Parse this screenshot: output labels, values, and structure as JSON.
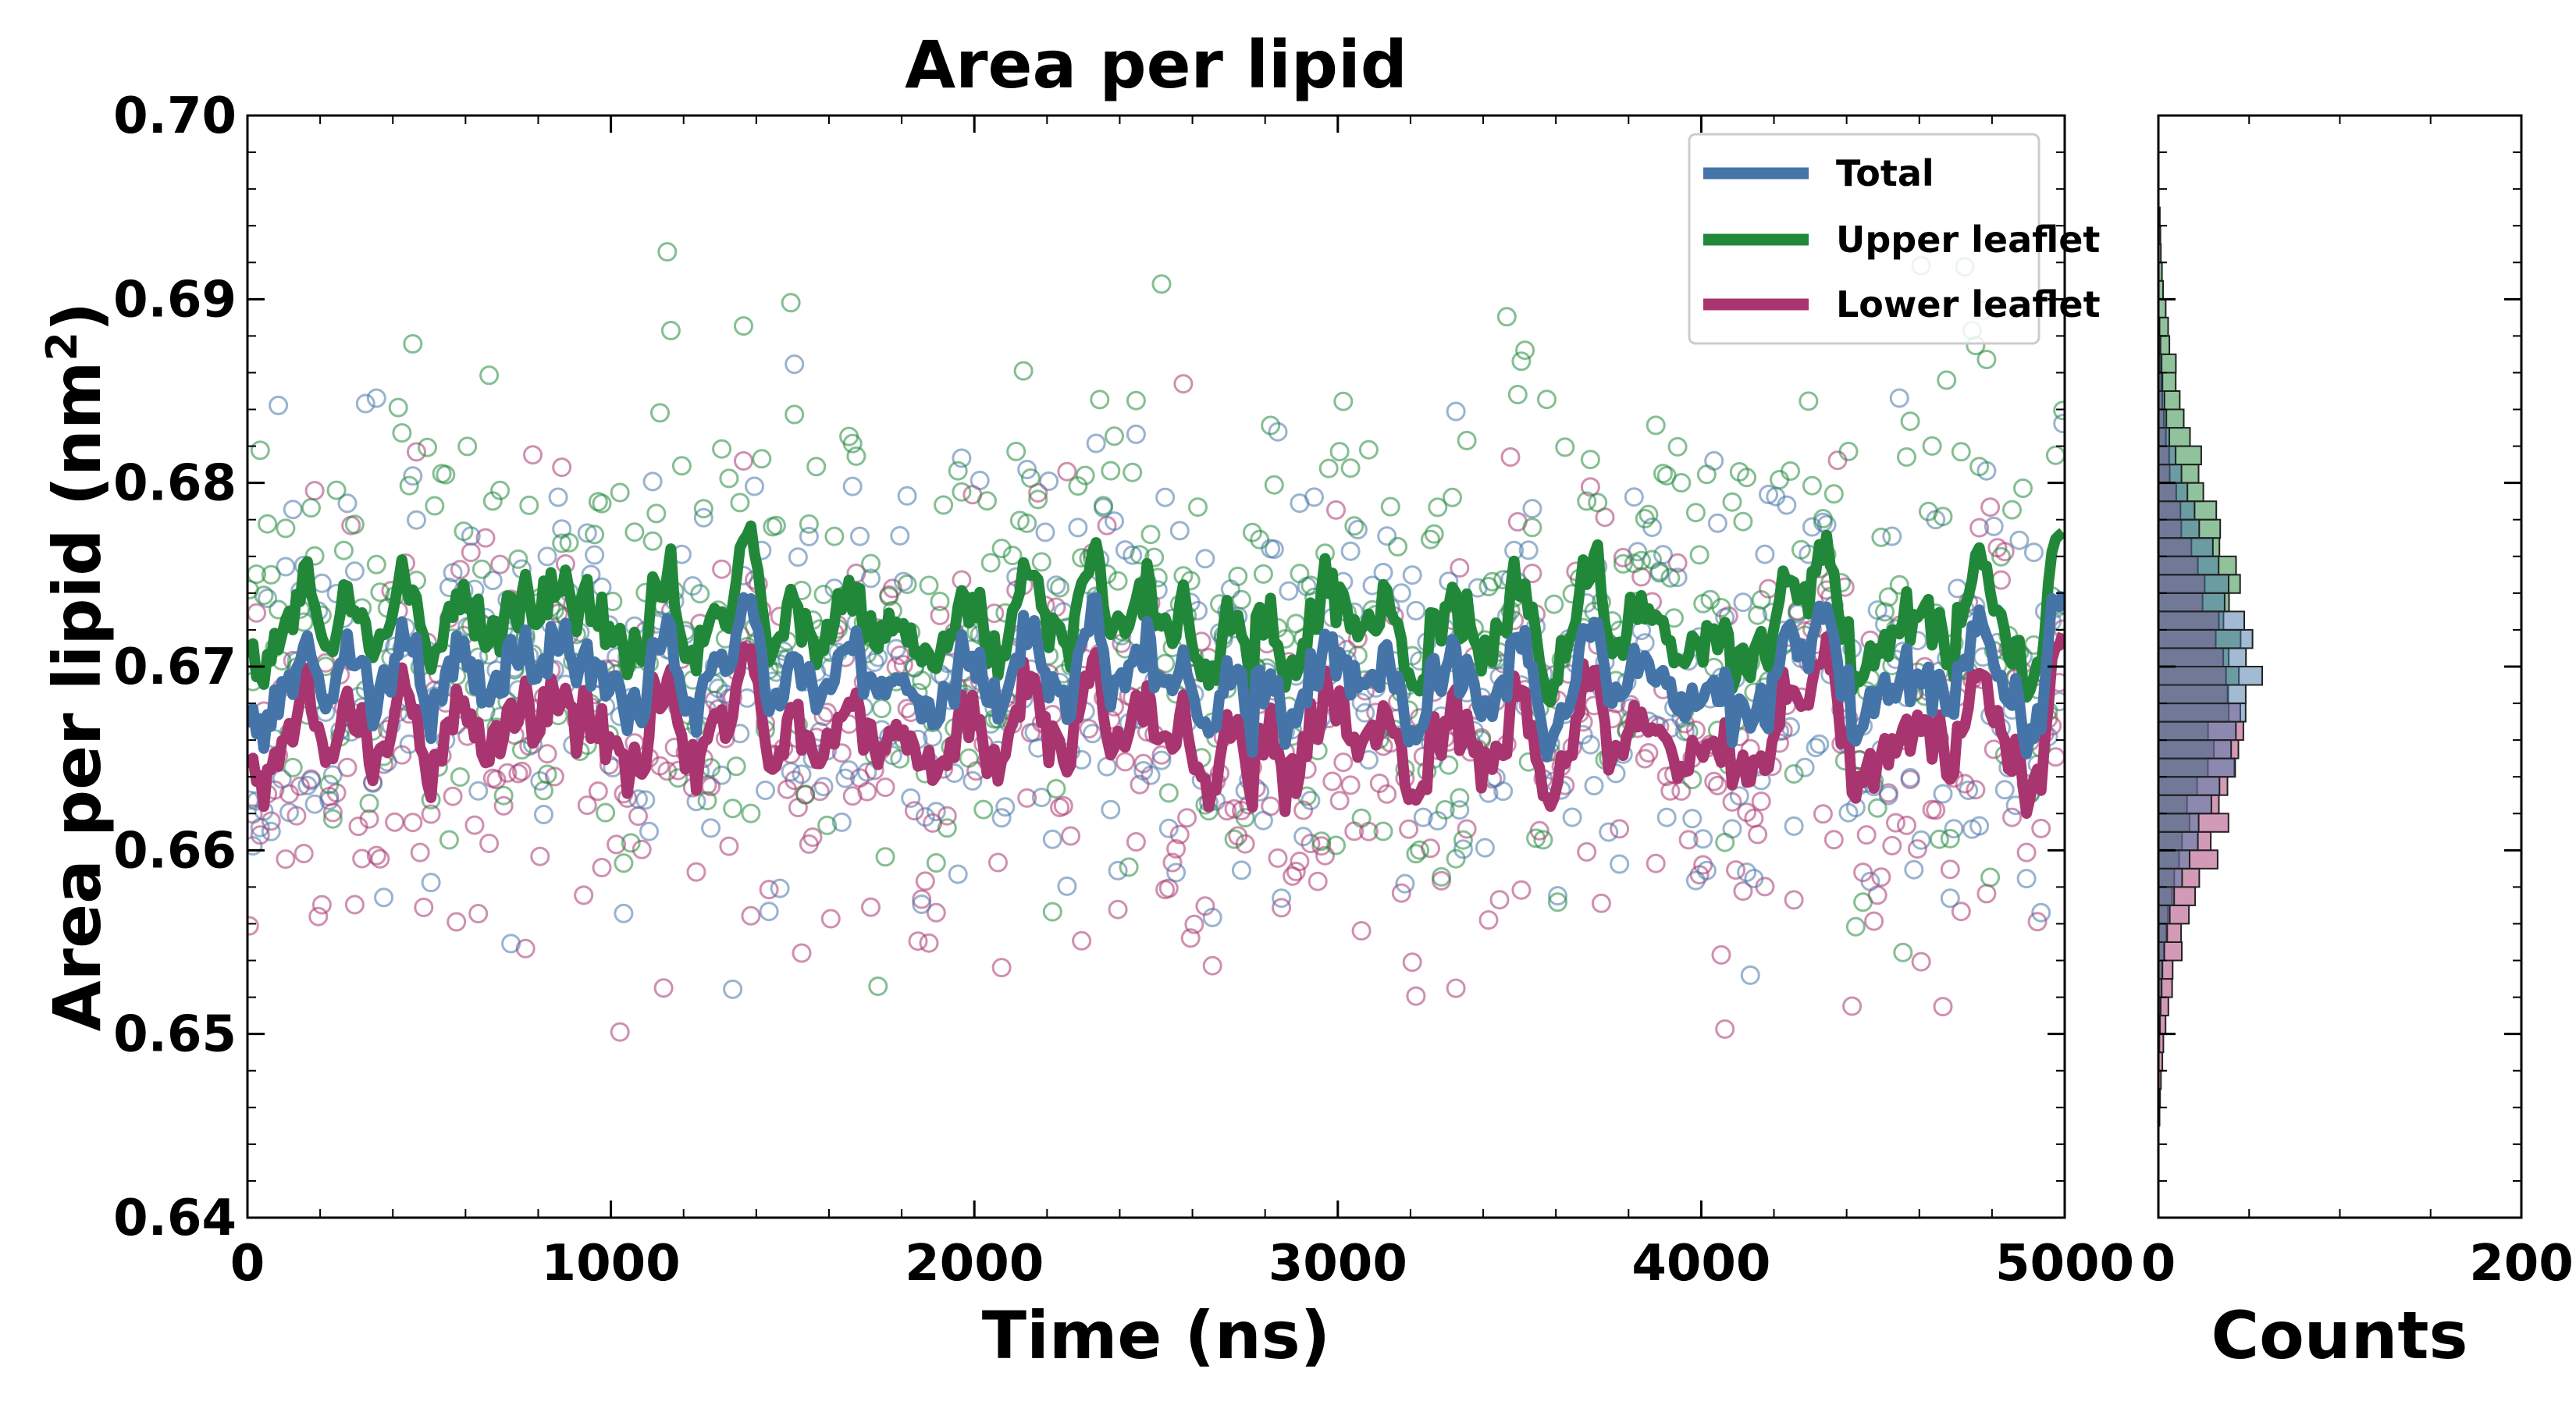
{
  "chart_data": [
    {
      "type": "scatter+line",
      "title": "Area per lipid",
      "xlabel": "Time (ns)",
      "ylabel": "Area per lipid (nm",
      "ylabel_superscript": "2",
      "ylabel_suffix": ")",
      "xlim": [
        0,
        5000
      ],
      "ylim": [
        0.64,
        0.7
      ],
      "xticks": [
        0,
        1000,
        2000,
        3000,
        4000,
        5000
      ],
      "xtick_labels": [
        "0",
        "1000",
        "2000",
        "3000",
        "4000",
        "5000"
      ],
      "yticks": [
        0.64,
        0.65,
        0.66,
        0.67,
        0.68,
        0.69,
        0.7
      ],
      "ytick_labels": [
        "0.64",
        "0.65",
        "0.66",
        "0.67",
        "0.68",
        "0.69",
        "0.70"
      ],
      "legend_position": "top-right",
      "n_points_per_series": 500,
      "series": [
        {
          "name": "Total",
          "color": "#4575a8",
          "mean": 0.6695,
          "sd": 0.0065,
          "smooth_amplitude": 0.0028,
          "markers": "open circles",
          "line": "running average"
        },
        {
          "name": "Upper leaflet",
          "color": "#21883a",
          "mean": 0.6725,
          "sd": 0.0078,
          "smooth_amplitude": 0.003,
          "markers": "open circles",
          "line": "running average"
        },
        {
          "name": "Lower leaflet",
          "color": "#a8356f",
          "mean": 0.6665,
          "sd": 0.0072,
          "smooth_amplitude": 0.003,
          "markers": "open circles",
          "line": "running average"
        }
      ]
    },
    {
      "type": "histogram",
      "orientation": "horizontal",
      "xlabel": "Counts",
      "xlim": [
        0,
        200
      ],
      "xticks": [
        0,
        200
      ],
      "xtick_labels": [
        "0",
        "200"
      ],
      "ylim": [
        0.64,
        0.7
      ],
      "bin_width": 0.001,
      "series": [
        {
          "name": "Total",
          "color": "#4575a8",
          "mean": 0.6695,
          "sd": 0.0065
        },
        {
          "name": "Upper leaflet",
          "color": "#21883a",
          "mean": 0.6725,
          "sd": 0.0078
        },
        {
          "name": "Lower leaflet",
          "color": "#a8356f",
          "mean": 0.6665,
          "sd": 0.0072
        }
      ]
    }
  ]
}
